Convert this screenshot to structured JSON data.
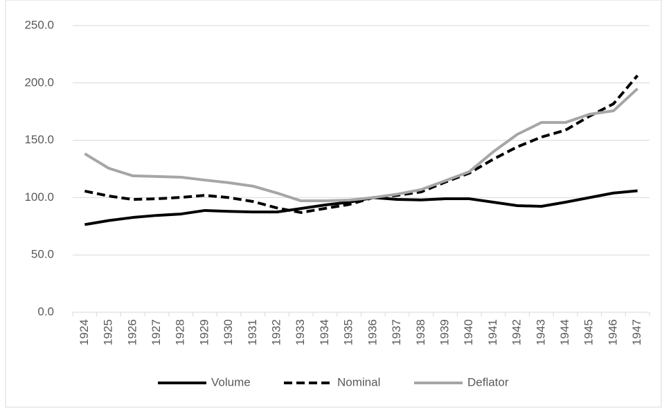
{
  "chart_data": {
    "type": "line",
    "categories": [
      "1924",
      "1925",
      "1926",
      "1927",
      "1928",
      "1929",
      "1930",
      "1931",
      "1932",
      "1933",
      "1934",
      "1935",
      "1936",
      "1937",
      "1938",
      "1939",
      "1940",
      "1941",
      "1942",
      "1943",
      "1944",
      "1945",
      "1946",
      "1947"
    ],
    "series": [
      {
        "name": "Volume",
        "color": "#000000",
        "line_style": "solid",
        "values": [
          76.5,
          80,
          82.7,
          84.5,
          85.7,
          88.8,
          88,
          87.5,
          87.5,
          90.5,
          93.6,
          96,
          100,
          98.4,
          98,
          99,
          99,
          96,
          93,
          92.4,
          96,
          100,
          104,
          106
        ]
      },
      {
        "name": "Nominal",
        "color": "#000000",
        "line_style": "dashed",
        "values": [
          105.7,
          101.4,
          98.4,
          99,
          100.2,
          102,
          100,
          96.6,
          91,
          87,
          90.6,
          94,
          100,
          102,
          105,
          113.5,
          121.4,
          133.5,
          144.3,
          152.8,
          158.8,
          171,
          181.8,
          206.5
        ]
      },
      {
        "name": "Deflator",
        "color": "#a6a6a6",
        "line_style": "solid",
        "values": [
          138.3,
          125.6,
          119,
          118.4,
          117.8,
          115.3,
          113,
          110,
          104,
          97.2,
          97.2,
          97.8,
          100,
          103,
          107,
          114.7,
          122.6,
          140,
          155.2,
          165.5,
          165.5,
          172.7,
          175.7,
          195
        ]
      }
    ],
    "ylim": [
      0,
      250
    ],
    "yticks": [
      {
        "value": 0,
        "label": "0.0"
      },
      {
        "value": 50,
        "label": "50.0"
      },
      {
        "value": 100,
        "label": "100.0"
      },
      {
        "value": 150,
        "label": "150.0"
      },
      {
        "value": 200,
        "label": "200.0"
      },
      {
        "value": 250,
        "label": "250.0"
      }
    ],
    "grid": true,
    "legend": "bottom"
  }
}
